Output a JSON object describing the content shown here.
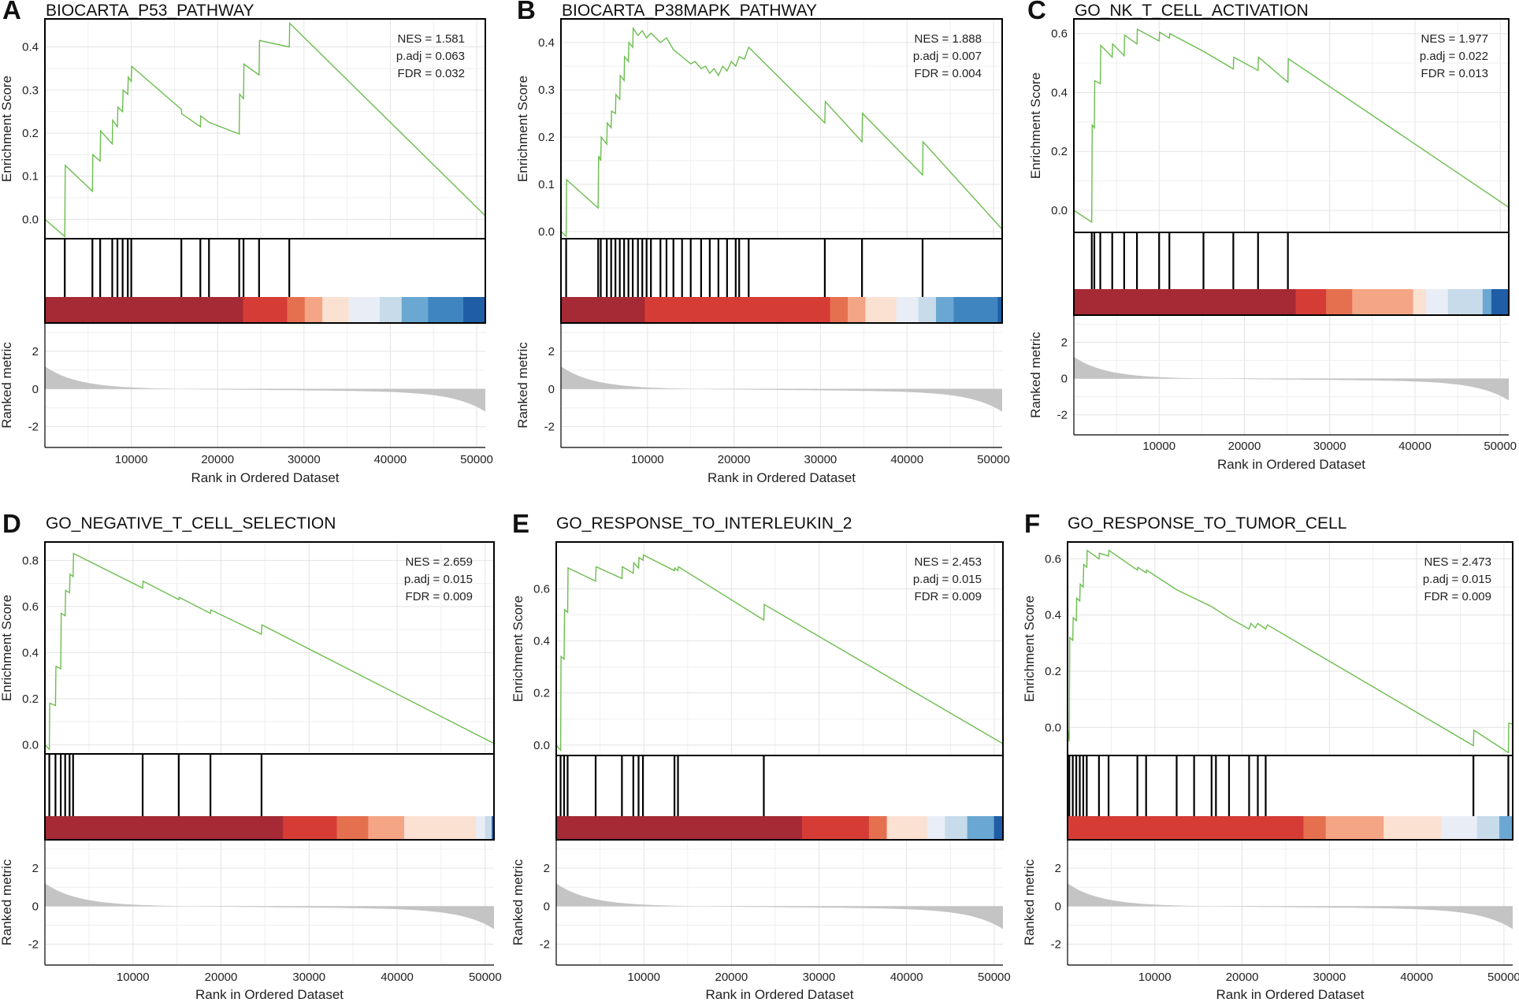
{
  "figure": {
    "shared": {
      "xlabel": "Rank in Ordered Dataset",
      "ylabel_es": "Enrichment Score",
      "ylabel_metric": "Ranked metric",
      "colors": {
        "curve": "#6dbd4f",
        "metric_fill": "#c4c4c4",
        "grid": "#e3e3e3"
      }
    }
  },
  "chart_data": [
    {
      "type": "line",
      "panel": "A",
      "title": "BIOCARTA_P53_PATHWAY",
      "stats": {
        "nes": "NES = 1.581",
        "padj": "p.adj = 0.063",
        "fdr": "FDR = 0.032"
      },
      "x_ticks": [
        10000,
        20000,
        30000,
        40000,
        50000
      ],
      "es_ticks": [
        "0.0",
        "0.1",
        "0.2",
        "0.3",
        "0.4"
      ],
      "ylim": [
        -0.045,
        0.465
      ],
      "curve": [
        [
          0,
          0
        ],
        [
          2300,
          -0.04
        ],
        [
          2350,
          0.125
        ],
        [
          5500,
          0.065
        ],
        [
          5550,
          0.15
        ],
        [
          6400,
          0.135
        ],
        [
          6450,
          0.205
        ],
        [
          7800,
          0.175
        ],
        [
          7850,
          0.23
        ],
        [
          8400,
          0.215
        ],
        [
          8450,
          0.26
        ],
        [
          9000,
          0.25
        ],
        [
          9050,
          0.3
        ],
        [
          9600,
          0.29
        ],
        [
          9650,
          0.33
        ],
        [
          10000,
          0.32
        ],
        [
          10050,
          0.355
        ],
        [
          15800,
          0.255
        ],
        [
          15850,
          0.245
        ],
        [
          18000,
          0.215
        ],
        [
          18050,
          0.24
        ],
        [
          19000,
          0.225
        ],
        [
          22500,
          0.198
        ],
        [
          22550,
          0.29
        ],
        [
          23000,
          0.28
        ],
        [
          23050,
          0.36
        ],
        [
          24800,
          0.335
        ],
        [
          24850,
          0.415
        ],
        [
          28300,
          0.4
        ],
        [
          28350,
          0.455
        ],
        [
          51000,
          0.008
        ]
      ],
      "hits": [
        2300,
        5500,
        6400,
        7800,
        8400,
        9000,
        9600,
        10000,
        15800,
        18000,
        19000,
        22500,
        23000,
        24800,
        28300
      ],
      "bands": [
        [
          0,
          0.45,
          "#a52a35"
        ],
        [
          0.45,
          0.55,
          "#d63c36"
        ],
        [
          0.55,
          0.59,
          "#e5704f"
        ],
        [
          0.59,
          0.63,
          "#f4a585"
        ],
        [
          0.63,
          0.69,
          "#fbe1d2"
        ],
        [
          0.69,
          0.76,
          "#e9eef6"
        ],
        [
          0.76,
          0.81,
          "#c8dbea"
        ],
        [
          0.81,
          0.87,
          "#6aa8d3"
        ],
        [
          0.87,
          0.95,
          "#3f86c1"
        ],
        [
          0.95,
          1,
          "#1f5ea6"
        ]
      ]
    },
    {
      "type": "line",
      "panel": "B",
      "title": "BIOCARTA_P38MAPK_PATHWAY",
      "stats": {
        "nes": "NES = 1.888",
        "padj": "p.adj = 0.007",
        "fdr": "FDR = 0.004"
      },
      "x_ticks": [
        10000,
        20000,
        30000,
        40000,
        50000
      ],
      "es_ticks": [
        "0.0",
        "0.1",
        "0.2",
        "0.3",
        "0.4"
      ],
      "ylim": [
        -0.015,
        0.45
      ],
      "curve": [
        [
          0,
          0
        ],
        [
          600,
          -0.01
        ],
        [
          650,
          0.11
        ],
        [
          4300,
          0.05
        ],
        [
          4350,
          0.16
        ],
        [
          4600,
          0.15
        ],
        [
          4650,
          0.2
        ],
        [
          5300,
          0.185
        ],
        [
          5350,
          0.23
        ],
        [
          5800,
          0.22
        ],
        [
          5850,
          0.255
        ],
        [
          6300,
          0.25
        ],
        [
          6350,
          0.29
        ],
        [
          6800,
          0.28
        ],
        [
          6850,
          0.33
        ],
        [
          7300,
          0.32
        ],
        [
          7350,
          0.37
        ],
        [
          7800,
          0.36
        ],
        [
          7850,
          0.4
        ],
        [
          8300,
          0.39
        ],
        [
          8350,
          0.43
        ],
        [
          8900,
          0.415
        ],
        [
          9400,
          0.425
        ],
        [
          9900,
          0.41
        ],
        [
          10400,
          0.42
        ],
        [
          11500,
          0.4
        ],
        [
          12200,
          0.41
        ],
        [
          13000,
          0.385
        ],
        [
          14000,
          0.37
        ],
        [
          15000,
          0.355
        ],
        [
          15500,
          0.36
        ],
        [
          16200,
          0.345
        ],
        [
          16700,
          0.35
        ],
        [
          17200,
          0.335
        ],
        [
          17700,
          0.345
        ],
        [
          18200,
          0.33
        ],
        [
          18700,
          0.35
        ],
        [
          19200,
          0.34
        ],
        [
          19700,
          0.36
        ],
        [
          20200,
          0.35
        ],
        [
          20600,
          0.37
        ],
        [
          21200,
          0.365
        ],
        [
          21700,
          0.39
        ],
        [
          30500,
          0.23
        ],
        [
          30550,
          0.275
        ],
        [
          34800,
          0.19
        ],
        [
          34850,
          0.25
        ],
        [
          41800,
          0.12
        ],
        [
          41850,
          0.19
        ],
        [
          51000,
          0.005
        ]
      ],
      "hits": [
        600,
        4300,
        4600,
        5300,
        5800,
        6300,
        6800,
        7300,
        7800,
        8300,
        8900,
        9400,
        9900,
        10400,
        11500,
        12200,
        13000,
        14000,
        15000,
        16200,
        17200,
        18200,
        19200,
        20200,
        20600,
        21700,
        30500,
        34800,
        41800
      ],
      "bands": [
        [
          0,
          0.19,
          "#a52a35"
        ],
        [
          0.19,
          0.61,
          "#d63c36"
        ],
        [
          0.61,
          0.65,
          "#e5704f"
        ],
        [
          0.65,
          0.69,
          "#f4a585"
        ],
        [
          0.69,
          0.76,
          "#fbe1d2"
        ],
        [
          0.76,
          0.81,
          "#e9eef6"
        ],
        [
          0.81,
          0.85,
          "#c8dbea"
        ],
        [
          0.85,
          0.89,
          "#6aa8d3"
        ],
        [
          0.89,
          0.99,
          "#3f86c1"
        ],
        [
          0.99,
          1,
          "#1f5ea6"
        ]
      ]
    },
    {
      "type": "line",
      "panel": "C",
      "title": "GO_NK_T_CELL_ACTIVATION",
      "stats": {
        "nes": "NES = 1.977",
        "padj": "p.adj = 0.022",
        "fdr": "FDR = 0.013"
      },
      "x_ticks": [
        10000,
        20000,
        30000,
        40000,
        50000
      ],
      "es_ticks": [
        "0.0",
        "0.2",
        "0.4",
        "0.6"
      ],
      "ylim": [
        -0.075,
        0.65
      ],
      "curve": [
        [
          0,
          0
        ],
        [
          2100,
          -0.04
        ],
        [
          2150,
          0.29
        ],
        [
          2400,
          0.28
        ],
        [
          2450,
          0.44
        ],
        [
          3100,
          0.43
        ],
        [
          3150,
          0.56
        ],
        [
          4500,
          0.52
        ],
        [
          4550,
          0.565
        ],
        [
          5900,
          0.525
        ],
        [
          5950,
          0.595
        ],
        [
          7400,
          0.565
        ],
        [
          7450,
          0.615
        ],
        [
          10000,
          0.575
        ],
        [
          10050,
          0.605
        ],
        [
          11200,
          0.585
        ],
        [
          11250,
          0.6
        ],
        [
          15200,
          0.54
        ],
        [
          18700,
          0.48
        ],
        [
          18750,
          0.52
        ],
        [
          21600,
          0.475
        ],
        [
          21650,
          0.52
        ],
        [
          25100,
          0.435
        ],
        [
          25150,
          0.515
        ],
        [
          51000,
          0.01
        ]
      ],
      "hits": [
        2100,
        2400,
        3100,
        4500,
        5900,
        7400,
        10000,
        11200,
        15200,
        18700,
        21600,
        25100
      ],
      "bands": [
        [
          0,
          0.51,
          "#a52a35"
        ],
        [
          0.51,
          0.58,
          "#d63c36"
        ],
        [
          0.58,
          0.64,
          "#e5704f"
        ],
        [
          0.64,
          0.78,
          "#f4a585"
        ],
        [
          0.78,
          0.81,
          "#fbe1d2"
        ],
        [
          0.81,
          0.86,
          "#e9eef6"
        ],
        [
          0.86,
          0.94,
          "#c8dbea"
        ],
        [
          0.94,
          0.96,
          "#6aa8d3"
        ],
        [
          0.96,
          1,
          "#1f5ea6"
        ]
      ]
    },
    {
      "type": "line",
      "panel": "D",
      "title": "GO_NEGATIVE_T_CELL_SELECTION",
      "stats": {
        "nes": "NES = 2.659",
        "padj": "p.adj = 0.015",
        "fdr": "FDR = 0.009"
      },
      "x_ticks": [
        10000,
        20000,
        30000,
        40000,
        50000
      ],
      "es_ticks": [
        "0.0",
        "0.2",
        "0.4",
        "0.6",
        "0.8"
      ],
      "ylim": [
        -0.04,
        0.88
      ],
      "curve": [
        [
          0,
          0
        ],
        [
          500,
          -0.02
        ],
        [
          550,
          0.18
        ],
        [
          1200,
          0.17
        ],
        [
          1250,
          0.34
        ],
        [
          1800,
          0.33
        ],
        [
          1850,
          0.57
        ],
        [
          2300,
          0.56
        ],
        [
          2350,
          0.67
        ],
        [
          2800,
          0.66
        ],
        [
          2850,
          0.74
        ],
        [
          3200,
          0.73
        ],
        [
          3250,
          0.83
        ],
        [
          11100,
          0.68
        ],
        [
          11150,
          0.71
        ],
        [
          15200,
          0.63
        ],
        [
          15250,
          0.64
        ],
        [
          18800,
          0.57
        ],
        [
          18850,
          0.585
        ],
        [
          24600,
          0.48
        ],
        [
          24650,
          0.52
        ],
        [
          51000,
          0.005
        ]
      ],
      "hits": [
        500,
        1200,
        1800,
        2300,
        2800,
        3200,
        11100,
        15200,
        18800,
        24600
      ],
      "bands": [
        [
          0,
          0.53,
          "#a52a35"
        ],
        [
          0.53,
          0.65,
          "#d63c36"
        ],
        [
          0.65,
          0.72,
          "#e5704f"
        ],
        [
          0.72,
          0.8,
          "#f4a585"
        ],
        [
          0.8,
          0.96,
          "#fbe1d2"
        ],
        [
          0.96,
          0.98,
          "#e9eef6"
        ],
        [
          0.98,
          0.995,
          "#c8dbea"
        ],
        [
          0.995,
          1,
          "#1f5ea6"
        ]
      ]
    },
    {
      "type": "line",
      "panel": "E",
      "title": "GO_RESPONSE_TO_INTERLEUKIN_2",
      "stats": {
        "nes": "NES = 2.453",
        "padj": "p.adj = 0.015",
        "fdr": "FDR = 0.009"
      },
      "x_ticks": [
        10000,
        20000,
        30000,
        40000,
        50000
      ],
      "es_ticks": [
        "0.0",
        "0.2",
        "0.4",
        "0.6"
      ],
      "ylim": [
        -0.04,
        0.78
      ],
      "curve": [
        [
          0,
          0
        ],
        [
          500,
          -0.02
        ],
        [
          550,
          0.34
        ],
        [
          900,
          0.33
        ],
        [
          950,
          0.52
        ],
        [
          1300,
          0.51
        ],
        [
          1350,
          0.68
        ],
        [
          4500,
          0.63
        ],
        [
          4550,
          0.685
        ],
        [
          7500,
          0.64
        ],
        [
          7550,
          0.685
        ],
        [
          8800,
          0.66
        ],
        [
          8850,
          0.7
        ],
        [
          9400,
          0.68
        ],
        [
          9450,
          0.72
        ],
        [
          9900,
          0.71
        ],
        [
          9950,
          0.73
        ],
        [
          13500,
          0.67
        ],
        [
          13550,
          0.68
        ],
        [
          13900,
          0.67
        ],
        [
          13950,
          0.685
        ],
        [
          23700,
          0.48
        ],
        [
          23750,
          0.54
        ],
        [
          51000,
          0.005
        ]
      ],
      "hits": [
        500,
        900,
        1300,
        4500,
        7500,
        8800,
        9400,
        9900,
        13500,
        13900,
        23700
      ],
      "bands": [
        [
          0,
          0.55,
          "#a52a35"
        ],
        [
          0.55,
          0.7,
          "#d63c36"
        ],
        [
          0.7,
          0.74,
          "#e5704f"
        ],
        [
          0.74,
          0.83,
          "#fbe1d2"
        ],
        [
          0.83,
          0.87,
          "#e9eef6"
        ],
        [
          0.87,
          0.92,
          "#c8dbea"
        ],
        [
          0.92,
          0.98,
          "#6aa8d3"
        ],
        [
          0.98,
          1,
          "#1f5ea6"
        ]
      ]
    },
    {
      "type": "line",
      "panel": "F",
      "title": "GO_RESPONSE_TO_TUMOR_CELL",
      "stats": {
        "nes": "NES = 2.473",
        "padj": "p.adj = 0.015",
        "fdr": "FDR = 0.009"
      },
      "x_ticks": [
        10000,
        20000,
        30000,
        40000,
        50000
      ],
      "es_ticks": [
        "0.0",
        "0.2",
        "0.4",
        "0.6"
      ],
      "ylim": [
        -0.1,
        0.66
      ],
      "curve": [
        [
          0,
          0
        ],
        [
          200,
          -0.05
        ],
        [
          250,
          0.32
        ],
        [
          600,
          0.31
        ],
        [
          650,
          0.39
        ],
        [
          1000,
          0.38
        ],
        [
          1050,
          0.46
        ],
        [
          1400,
          0.45
        ],
        [
          1450,
          0.51
        ],
        [
          1800,
          0.5
        ],
        [
          1850,
          0.58
        ],
        [
          2200,
          0.57
        ],
        [
          2250,
          0.63
        ],
        [
          3600,
          0.6
        ],
        [
          3650,
          0.62
        ],
        [
          4700,
          0.61
        ],
        [
          4750,
          0.63
        ],
        [
          8000,
          0.56
        ],
        [
          8050,
          0.57
        ],
        [
          9000,
          0.55
        ],
        [
          9050,
          0.56
        ],
        [
          12500,
          0.49
        ],
        [
          16500,
          0.43
        ],
        [
          17000,
          0.42
        ],
        [
          18500,
          0.39
        ],
        [
          20800,
          0.35
        ],
        [
          21000,
          0.37
        ],
        [
          21500,
          0.355
        ],
        [
          21800,
          0.37
        ],
        [
          22700,
          0.35
        ],
        [
          22900,
          0.365
        ],
        [
          46500,
          -0.065
        ],
        [
          46550,
          -0.01
        ],
        [
          50500,
          -0.09
        ],
        [
          50550,
          0.015
        ],
        [
          51000,
          0.012
        ]
      ],
      "hits": [
        200,
        600,
        1000,
        1400,
        1800,
        2200,
        3600,
        4700,
        8000,
        9000,
        12500,
        14500,
        16500,
        17000,
        18500,
        20800,
        21800,
        22700,
        46500,
        50500
      ],
      "bands": [
        [
          0,
          0.53,
          "#d63c36"
        ],
        [
          0.53,
          0.58,
          "#e5704f"
        ],
        [
          0.58,
          0.71,
          "#f4a585"
        ],
        [
          0.71,
          0.84,
          "#fbe1d2"
        ],
        [
          0.84,
          0.92,
          "#e9eef6"
        ],
        [
          0.92,
          0.97,
          "#c8dbea"
        ],
        [
          0.97,
          1,
          "#6aa8d3"
        ]
      ]
    }
  ]
}
